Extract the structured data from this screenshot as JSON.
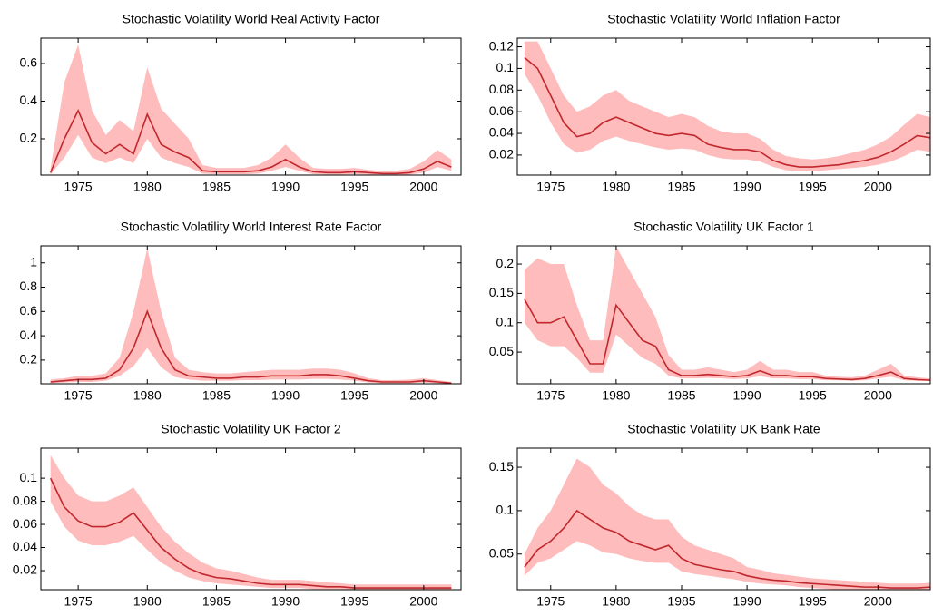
{
  "chart_data": [
    {
      "type": "line",
      "title": "Stochastic Volatility World Real Activity Factor",
      "color": "#c0282d",
      "band_color": "#ffbcbc",
      "x": [
        1973,
        1974,
        1975,
        1976,
        1977,
        1978,
        1979,
        1980,
        1981,
        1982,
        1983,
        1984,
        1985,
        1986,
        1987,
        1988,
        1989,
        1990,
        1991,
        1992,
        1993,
        1994,
        1995,
        1996,
        1997,
        1998,
        1999,
        2000,
        2001,
        2002
      ],
      "values": [
        0.02,
        0.2,
        0.35,
        0.18,
        0.12,
        0.17,
        0.12,
        0.33,
        0.17,
        0.13,
        0.1,
        0.03,
        0.025,
        0.025,
        0.025,
        0.03,
        0.05,
        0.09,
        0.05,
        0.025,
        0.02,
        0.02,
        0.025,
        0.02,
        0.015,
        0.015,
        0.02,
        0.04,
        0.08,
        0.05
      ],
      "upper": [
        0.04,
        0.5,
        0.7,
        0.35,
        0.22,
        0.3,
        0.24,
        0.58,
        0.36,
        0.28,
        0.2,
        0.06,
        0.045,
        0.045,
        0.045,
        0.06,
        0.1,
        0.17,
        0.1,
        0.045,
        0.04,
        0.04,
        0.045,
        0.035,
        0.03,
        0.03,
        0.04,
        0.08,
        0.14,
        0.09
      ],
      "lower": [
        0.01,
        0.1,
        0.22,
        0.1,
        0.07,
        0.1,
        0.07,
        0.2,
        0.1,
        0.07,
        0.05,
        0.015,
        0.012,
        0.012,
        0.012,
        0.015,
        0.03,
        0.05,
        0.03,
        0.012,
        0.01,
        0.01,
        0.012,
        0.01,
        0.008,
        0.008,
        0.01,
        0.02,
        0.05,
        0.03
      ],
      "xlim": [
        1972.3,
        2002.7
      ],
      "ylim": [
        0.007,
        0.735
      ],
      "xticks": [
        1975,
        1980,
        1985,
        1990,
        1995,
        2000
      ],
      "yticks": [
        0.2,
        0.4,
        0.6
      ]
    },
    {
      "type": "line",
      "title": "Stochastic Volatility World Inflation Factor",
      "color": "#c0282d",
      "band_color": "#ffbcbc",
      "x": [
        1973,
        1974,
        1975,
        1976,
        1977,
        1978,
        1979,
        1980,
        1981,
        1982,
        1983,
        1984,
        1985,
        1986,
        1987,
        1988,
        1989,
        1990,
        1991,
        1992,
        1993,
        1994,
        1995,
        1996,
        1997,
        1998,
        1999,
        2000,
        2001,
        2002,
        2003,
        2004
      ],
      "values": [
        0.11,
        0.1,
        0.075,
        0.05,
        0.037,
        0.04,
        0.05,
        0.055,
        0.05,
        0.045,
        0.04,
        0.038,
        0.04,
        0.038,
        0.03,
        0.027,
        0.025,
        0.025,
        0.023,
        0.015,
        0.011,
        0.009,
        0.009,
        0.01,
        0.011,
        0.013,
        0.015,
        0.018,
        0.023,
        0.03,
        0.038,
        0.036
      ],
      "upper": [
        0.125,
        0.125,
        0.1,
        0.075,
        0.06,
        0.065,
        0.075,
        0.08,
        0.07,
        0.065,
        0.06,
        0.055,
        0.058,
        0.055,
        0.047,
        0.042,
        0.04,
        0.04,
        0.035,
        0.025,
        0.019,
        0.017,
        0.016,
        0.017,
        0.019,
        0.022,
        0.025,
        0.03,
        0.037,
        0.048,
        0.058,
        0.055
      ],
      "lower": [
        0.095,
        0.075,
        0.05,
        0.03,
        0.022,
        0.025,
        0.033,
        0.037,
        0.033,
        0.03,
        0.027,
        0.025,
        0.026,
        0.025,
        0.02,
        0.017,
        0.016,
        0.016,
        0.014,
        0.009,
        0.006,
        0.005,
        0.005,
        0.006,
        0.007,
        0.008,
        0.009,
        0.011,
        0.014,
        0.019,
        0.025,
        0.023
      ],
      "xlim": [
        1972.45,
        2004
      ],
      "ylim": [
        0.0015,
        0.128
      ],
      "xticks": [
        1975,
        1980,
        1985,
        1990,
        1995,
        2000
      ],
      "yticks": [
        0.02,
        0.04,
        0.06,
        0.08,
        0.1,
        0.12
      ]
    },
    {
      "type": "line",
      "title": "Stochastic Volatility World Interest Rate Factor",
      "color": "#c0282d",
      "band_color": "#ffbcbc",
      "x": [
        1973,
        1974,
        1975,
        1976,
        1977,
        1978,
        1979,
        1980,
        1981,
        1982,
        1983,
        1984,
        1985,
        1986,
        1987,
        1988,
        1989,
        1990,
        1991,
        1992,
        1993,
        1994,
        1995,
        1996,
        1997,
        1998,
        1999,
        2000,
        2001,
        2002
      ],
      "values": [
        0.02,
        0.03,
        0.04,
        0.04,
        0.05,
        0.12,
        0.3,
        0.6,
        0.3,
        0.12,
        0.07,
        0.06,
        0.05,
        0.05,
        0.06,
        0.06,
        0.07,
        0.07,
        0.07,
        0.08,
        0.08,
        0.07,
        0.05,
        0.03,
        0.02,
        0.02,
        0.02,
        0.03,
        0.02,
        0.01
      ],
      "upper": [
        0.04,
        0.05,
        0.07,
        0.07,
        0.09,
        0.22,
        0.6,
        1.12,
        0.6,
        0.22,
        0.12,
        0.1,
        0.09,
        0.09,
        0.1,
        0.11,
        0.12,
        0.12,
        0.12,
        0.13,
        0.13,
        0.12,
        0.09,
        0.05,
        0.035,
        0.035,
        0.04,
        0.05,
        0.035,
        0.02
      ],
      "lower": [
        0.01,
        0.015,
        0.02,
        0.02,
        0.03,
        0.07,
        0.15,
        0.3,
        0.14,
        0.06,
        0.04,
        0.03,
        0.03,
        0.03,
        0.035,
        0.035,
        0.04,
        0.04,
        0.04,
        0.045,
        0.045,
        0.04,
        0.03,
        0.015,
        0.01,
        0.01,
        0.01,
        0.015,
        0.01,
        0.005
      ],
      "xlim": [
        1972.3,
        2002.7
      ],
      "ylim": [
        0.005,
        1.14
      ],
      "xticks": [
        1975,
        1980,
        1985,
        1990,
        1995,
        2000
      ],
      "yticks": [
        0.2,
        0.4,
        0.6,
        0.8,
        1
      ]
    },
    {
      "type": "line",
      "title": "Stochastic Volatility UK Factor 1",
      "color": "#c0282d",
      "band_color": "#ffbcbc",
      "x": [
        1973,
        1974,
        1975,
        1976,
        1977,
        1978,
        1979,
        1980,
        1981,
        1982,
        1983,
        1984,
        1985,
        1986,
        1987,
        1988,
        1989,
        1990,
        1991,
        1992,
        1993,
        1994,
        1995,
        1996,
        1997,
        1998,
        1999,
        2000,
        2001,
        2002,
        2003,
        2004
      ],
      "values": [
        0.14,
        0.1,
        0.1,
        0.11,
        0.07,
        0.03,
        0.03,
        0.13,
        0.1,
        0.07,
        0.06,
        0.02,
        0.01,
        0.01,
        0.012,
        0.01,
        0.008,
        0.01,
        0.018,
        0.01,
        0.01,
        0.008,
        0.008,
        0.005,
        0.004,
        0.003,
        0.005,
        0.01,
        0.016,
        0.005,
        0.003,
        0.002
      ],
      "upper": [
        0.19,
        0.21,
        0.2,
        0.2,
        0.13,
        0.07,
        0.07,
        0.23,
        0.19,
        0.15,
        0.11,
        0.045,
        0.02,
        0.02,
        0.024,
        0.02,
        0.016,
        0.02,
        0.035,
        0.02,
        0.02,
        0.016,
        0.016,
        0.01,
        0.008,
        0.007,
        0.01,
        0.02,
        0.03,
        0.01,
        0.007,
        0.005
      ],
      "lower": [
        0.1,
        0.07,
        0.06,
        0.06,
        0.04,
        0.015,
        0.015,
        0.08,
        0.06,
        0.04,
        0.03,
        0.01,
        0.005,
        0.005,
        0.006,
        0.005,
        0.004,
        0.005,
        0.009,
        0.005,
        0.005,
        0.004,
        0.004,
        0.002,
        0.002,
        0.001,
        0.002,
        0.005,
        0.008,
        0.002,
        0.001,
        0.001
      ],
      "xlim": [
        1972.45,
        2004
      ],
      "ylim": [
        -0.004,
        0.231
      ],
      "xticks": [
        1975,
        1980,
        1985,
        1990,
        1995,
        2000
      ],
      "yticks": [
        0.05,
        0.1,
        0.15,
        0.2
      ]
    },
    {
      "type": "line",
      "title": "Stochastic Volatility UK Factor 2",
      "color": "#c0282d",
      "band_color": "#ffbcbc",
      "x": [
        1973,
        1974,
        1975,
        1976,
        1977,
        1978,
        1979,
        1980,
        1981,
        1982,
        1983,
        1984,
        1985,
        1986,
        1987,
        1988,
        1989,
        1990,
        1991,
        1992,
        1993,
        1994,
        1995,
        1996,
        1997,
        1998,
        1999,
        2000,
        2001,
        2002
      ],
      "values": [
        0.1,
        0.075,
        0.063,
        0.058,
        0.058,
        0.062,
        0.07,
        0.055,
        0.04,
        0.03,
        0.022,
        0.017,
        0.014,
        0.013,
        0.011,
        0.009,
        0.008,
        0.008,
        0.008,
        0.007,
        0.006,
        0.006,
        0.005,
        0.005,
        0.005,
        0.005,
        0.005,
        0.005,
        0.005,
        0.005
      ],
      "upper": [
        0.12,
        0.1,
        0.085,
        0.08,
        0.08,
        0.085,
        0.092,
        0.075,
        0.058,
        0.045,
        0.035,
        0.027,
        0.022,
        0.02,
        0.017,
        0.014,
        0.012,
        0.012,
        0.012,
        0.011,
        0.01,
        0.009,
        0.008,
        0.008,
        0.008,
        0.008,
        0.008,
        0.008,
        0.008,
        0.008
      ],
      "lower": [
        0.08,
        0.058,
        0.046,
        0.042,
        0.042,
        0.045,
        0.05,
        0.038,
        0.027,
        0.02,
        0.014,
        0.011,
        0.009,
        0.008,
        0.007,
        0.006,
        0.005,
        0.005,
        0.005,
        0.004,
        0.004,
        0.004,
        0.003,
        0.003,
        0.003,
        0.003,
        0.003,
        0.003,
        0.003,
        0.003
      ],
      "xlim": [
        1972.3,
        2002.7
      ],
      "ylim": [
        0.0035,
        0.126
      ],
      "xticks": [
        1975,
        1980,
        1985,
        1990,
        1995,
        2000
      ],
      "yticks": [
        0.02,
        0.04,
        0.06,
        0.08,
        0.1
      ]
    },
    {
      "type": "line",
      "title": "Stochastic Volatility UK Bank Rate",
      "color": "#c0282d",
      "band_color": "#ffbcbc",
      "x": [
        1973,
        1974,
        1975,
        1976,
        1977,
        1978,
        1979,
        1980,
        1981,
        1982,
        1983,
        1984,
        1985,
        1986,
        1987,
        1988,
        1989,
        1990,
        1991,
        1992,
        1993,
        1994,
        1995,
        1996,
        1997,
        1998,
        1999,
        2000,
        2001,
        2002,
        2003,
        2004
      ],
      "values": [
        0.035,
        0.055,
        0.065,
        0.08,
        0.1,
        0.09,
        0.08,
        0.075,
        0.065,
        0.06,
        0.055,
        0.06,
        0.045,
        0.038,
        0.035,
        0.032,
        0.03,
        0.025,
        0.022,
        0.02,
        0.019,
        0.017,
        0.016,
        0.015,
        0.014,
        0.013,
        0.012,
        0.012,
        0.011,
        0.011,
        0.011,
        0.012
      ],
      "upper": [
        0.05,
        0.08,
        0.1,
        0.13,
        0.16,
        0.15,
        0.13,
        0.12,
        0.105,
        0.095,
        0.09,
        0.09,
        0.07,
        0.06,
        0.055,
        0.05,
        0.045,
        0.035,
        0.032,
        0.028,
        0.026,
        0.024,
        0.022,
        0.021,
        0.02,
        0.019,
        0.018,
        0.017,
        0.016,
        0.016,
        0.016,
        0.017
      ],
      "lower": [
        0.025,
        0.04,
        0.045,
        0.055,
        0.065,
        0.06,
        0.052,
        0.05,
        0.045,
        0.042,
        0.04,
        0.04,
        0.03,
        0.027,
        0.025,
        0.023,
        0.021,
        0.018,
        0.016,
        0.015,
        0.014,
        0.012,
        0.011,
        0.01,
        0.009,
        0.009,
        0.008,
        0.008,
        0.008,
        0.008,
        0.008,
        0.008
      ],
      "xlim": [
        1972.45,
        2004
      ],
      "ylim": [
        0.009,
        0.172
      ],
      "xticks": [
        1975,
        1980,
        1985,
        1990,
        1995,
        2000
      ],
      "yticks": [
        0.05,
        0.1,
        0.15
      ]
    }
  ]
}
